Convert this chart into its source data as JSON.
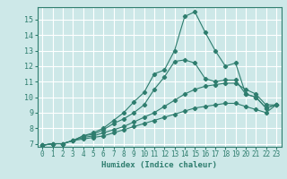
{
  "title": "",
  "xlabel": "Humidex (Indice chaleur)",
  "xlim": [
    -0.5,
    23.5
  ],
  "ylim": [
    6.8,
    15.8
  ],
  "yticks": [
    7,
    8,
    9,
    10,
    11,
    12,
    13,
    14,
    15
  ],
  "xticks": [
    0,
    1,
    2,
    3,
    4,
    5,
    6,
    7,
    8,
    9,
    10,
    11,
    12,
    13,
    14,
    15,
    16,
    17,
    18,
    19,
    20,
    21,
    22,
    23
  ],
  "background_color": "#cde8e8",
  "grid_color": "#ffffff",
  "line_color": "#2e7d6e",
  "lines": [
    {
      "x": [
        0,
        1,
        2,
        3,
        4,
        5,
        6,
        7,
        8,
        9,
        10,
        11,
        12,
        13,
        14,
        15,
        16,
        17,
        18,
        19,
        20,
        21,
        22,
        23
      ],
      "y": [
        6.9,
        7.0,
        7.0,
        7.2,
        7.5,
        7.7,
        8.0,
        8.5,
        9.0,
        9.7,
        10.3,
        11.5,
        11.75,
        13.0,
        15.2,
        15.5,
        14.2,
        13.0,
        12.0,
        12.2,
        10.2,
        10.0,
        9.3,
        9.5
      ]
    },
    {
      "x": [
        0,
        1,
        2,
        3,
        4,
        5,
        6,
        7,
        8,
        9,
        10,
        11,
        12,
        13,
        14,
        15,
        16,
        17,
        18,
        19,
        20,
        21,
        22,
        23
      ],
      "y": [
        6.9,
        7.0,
        7.0,
        7.2,
        7.5,
        7.6,
        7.9,
        8.3,
        8.6,
        9.0,
        9.5,
        10.5,
        11.3,
        12.3,
        12.4,
        12.2,
        11.2,
        11.0,
        11.1,
        11.1,
        10.2,
        10.0,
        9.3,
        9.5
      ]
    },
    {
      "x": [
        0,
        1,
        2,
        3,
        4,
        5,
        6,
        7,
        8,
        9,
        10,
        11,
        12,
        13,
        14,
        15,
        16,
        17,
        18,
        19,
        20,
        21,
        22,
        23
      ],
      "y": [
        6.9,
        7.0,
        7.0,
        7.2,
        7.4,
        7.5,
        7.7,
        7.9,
        8.1,
        8.4,
        8.7,
        9.0,
        9.4,
        9.8,
        10.2,
        10.5,
        10.7,
        10.8,
        10.9,
        10.9,
        10.5,
        10.2,
        9.5,
        9.5
      ]
    },
    {
      "x": [
        0,
        1,
        2,
        3,
        4,
        5,
        6,
        7,
        8,
        9,
        10,
        11,
        12,
        13,
        14,
        15,
        16,
        17,
        18,
        19,
        20,
        21,
        22,
        23
      ],
      "y": [
        6.9,
        7.0,
        7.0,
        7.2,
        7.3,
        7.4,
        7.5,
        7.7,
        7.9,
        8.1,
        8.3,
        8.5,
        8.7,
        8.9,
        9.1,
        9.3,
        9.4,
        9.5,
        9.6,
        9.6,
        9.4,
        9.2,
        9.0,
        9.5
      ]
    }
  ]
}
